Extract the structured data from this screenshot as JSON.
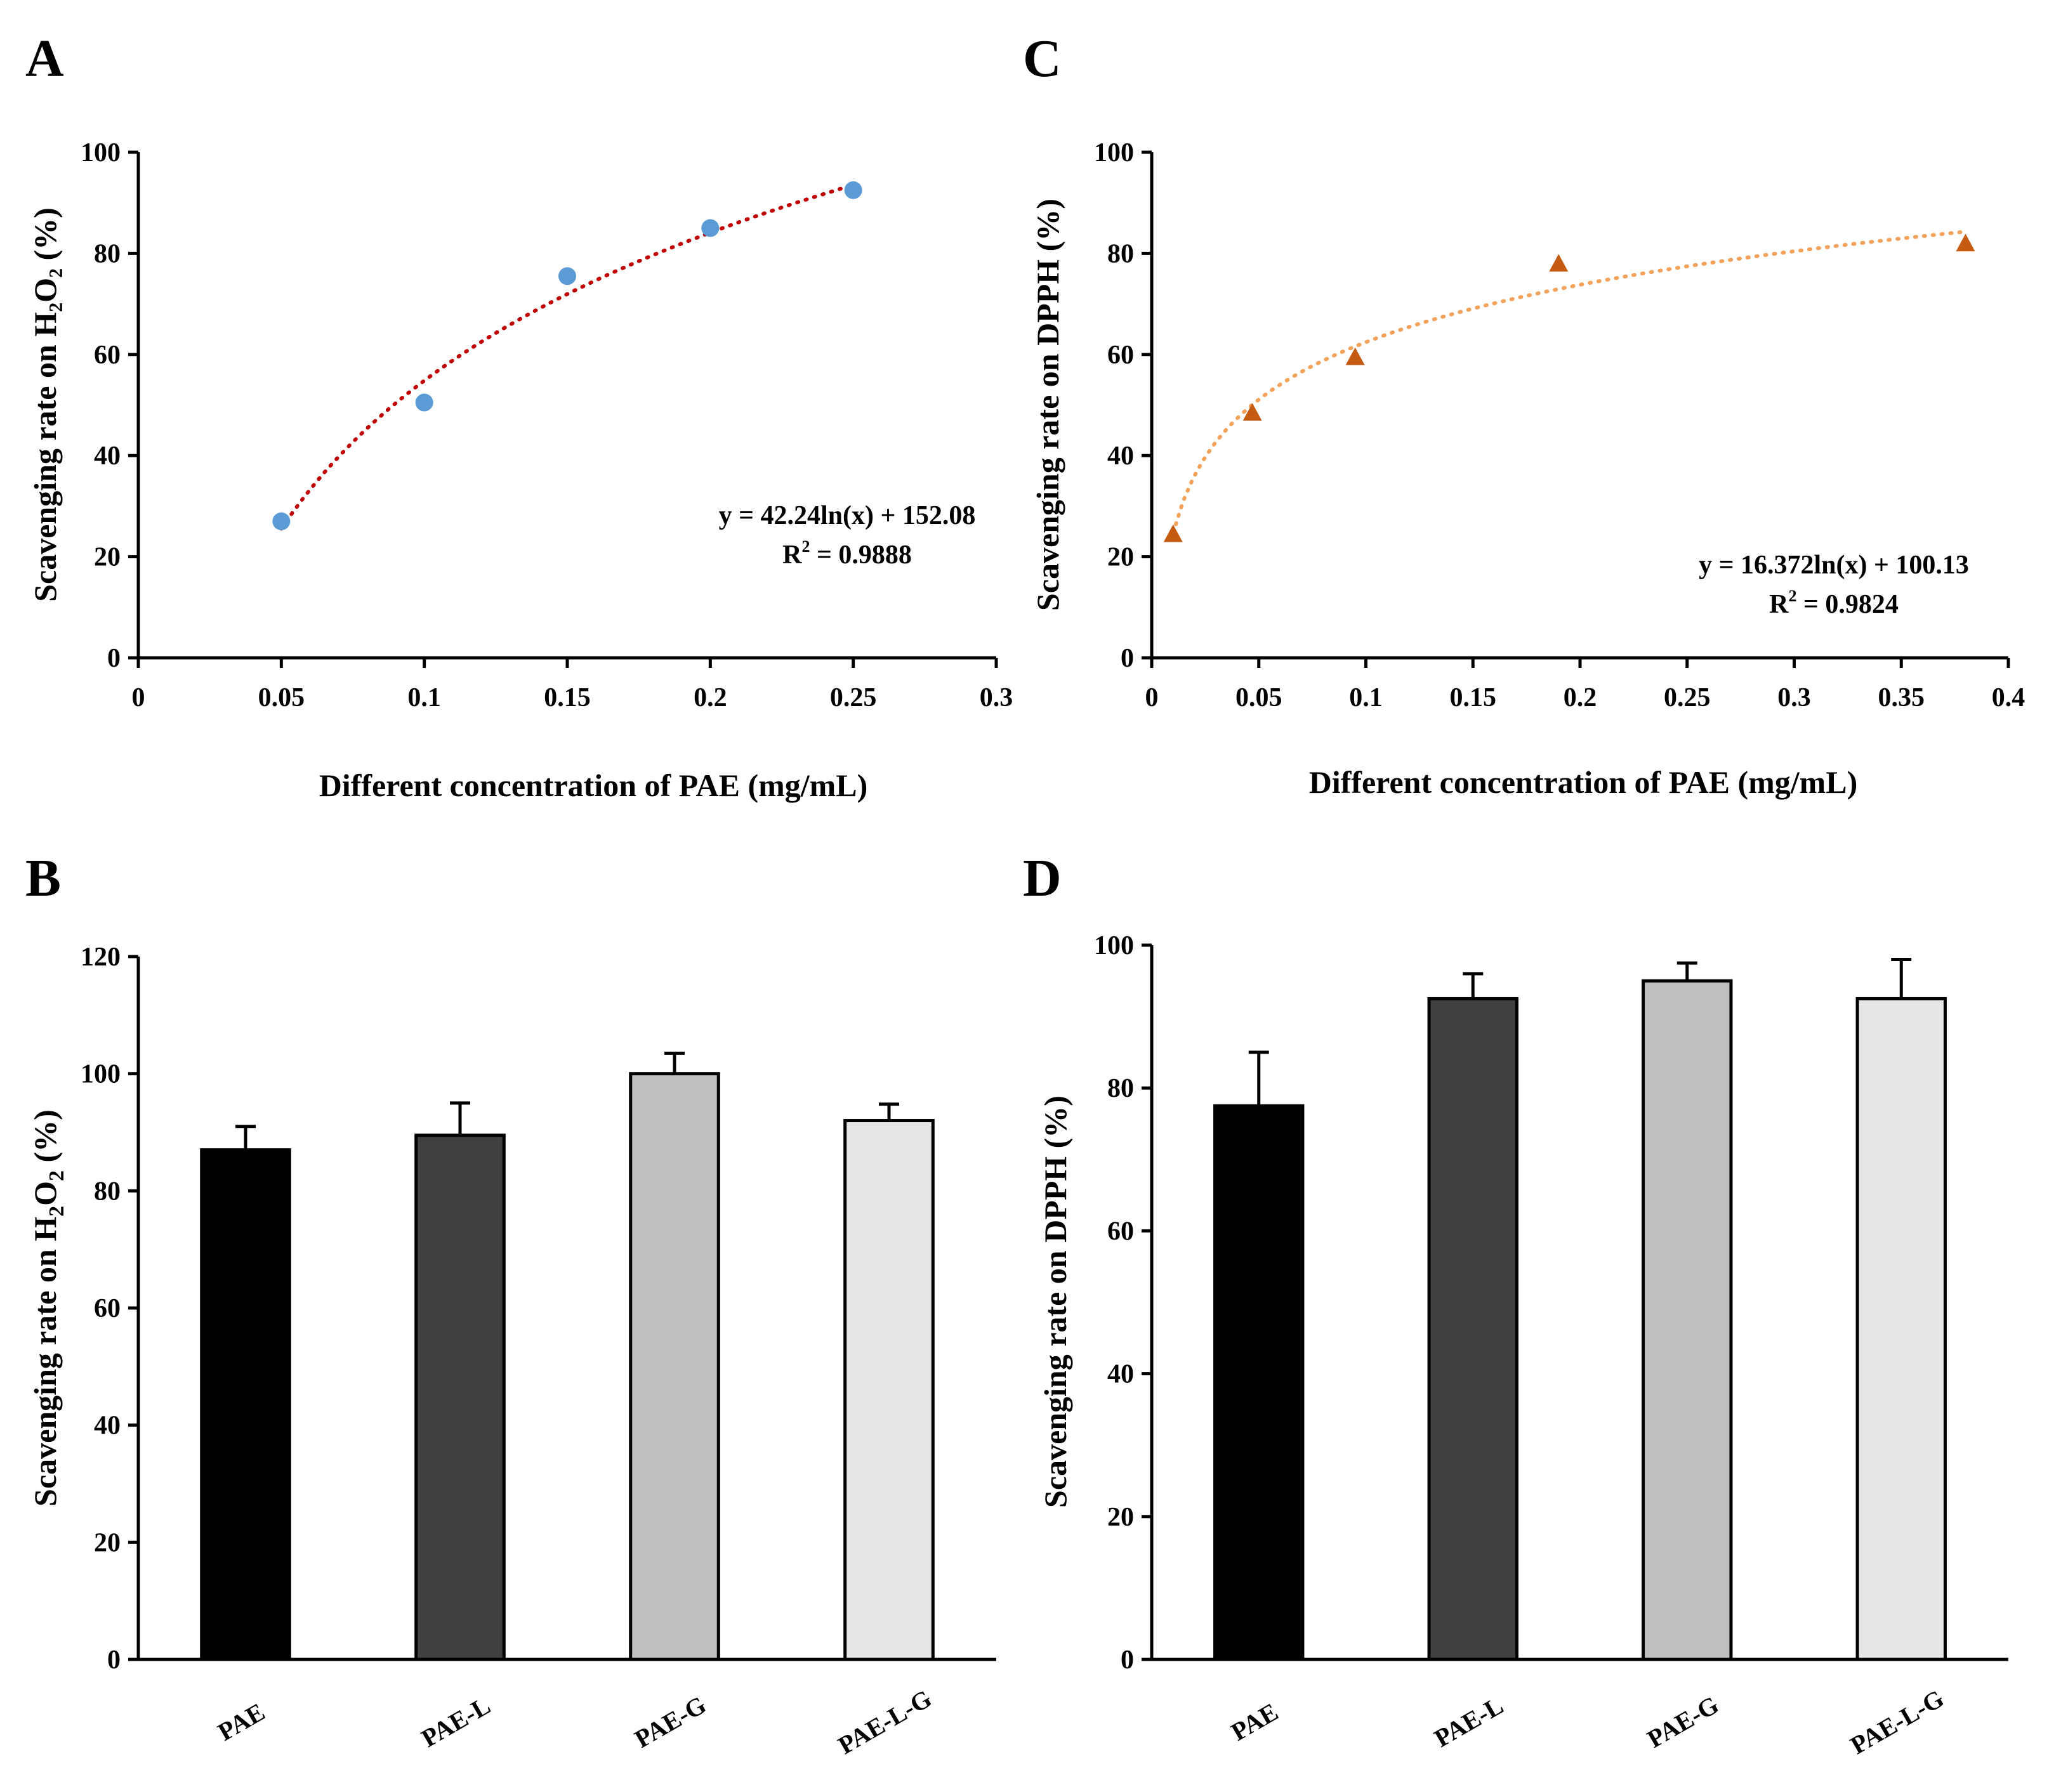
{
  "colors": {
    "scatter_a_points": "#5b9bd5",
    "scatter_a_trend": "#c00000",
    "scatter_c_points": "#c55a11",
    "scatter_c_trend": "#f4a15a",
    "bar_pae": "#000000",
    "bar_pae_l": "#404040",
    "bar_pae_g": "#bfbfbf",
    "bar_pae_l_g": "#e6e6e6"
  },
  "chart_data": [
    {
      "panel": "A",
      "type": "scatter",
      "marker": "circle",
      "x": [
        0.05,
        0.1,
        0.15,
        0.2,
        0.25
      ],
      "y": [
        27,
        50.5,
        75.5,
        85,
        92.5
      ],
      "xlabel": "Different concentration of PAE (mg/mL)",
      "ylabel": "Scavenging rate on H₂O₂ (%)",
      "xlim": [
        0,
        0.3
      ],
      "ylim": [
        0,
        100
      ],
      "xticks": [
        "0",
        "0.05",
        "0.1",
        "0.15",
        "0.2",
        "0.25",
        "0.3"
      ],
      "yticks": [
        "0",
        "20",
        "40",
        "60",
        "80",
        "100"
      ],
      "trendline": {
        "type": "log",
        "a": 42.24,
        "b": 152.08,
        "x_range": [
          0.05,
          0.25
        ]
      },
      "annotation": {
        "equation": "y = 42.24ln(x) + 152.08",
        "r2_label": "R",
        "r2_sup": "2",
        "r2_value": " = 0.9888"
      }
    },
    {
      "panel": "B",
      "type": "bar",
      "categories": [
        "PAE",
        "PAE-L",
        "PAE-G",
        "PAE-L-G"
      ],
      "values": [
        87,
        89.5,
        100,
        92
      ],
      "errors": [
        4,
        5.5,
        3.5,
        2.8
      ],
      "ylabel_main": "Scavenging rate on H",
      "ylabel_sub1": "2",
      "ylabel_mid": "O",
      "ylabel_sub2": "2",
      "ylabel_end": " (%)",
      "ylim": [
        0,
        120
      ],
      "yticks": [
        "0",
        "20",
        "40",
        "60",
        "80",
        "100",
        "120"
      ]
    },
    {
      "panel": "C",
      "type": "scatter",
      "marker": "triangle",
      "x": [
        0.01,
        0.047,
        0.095,
        0.19,
        0.38
      ],
      "y": [
        24.5,
        48.5,
        59.5,
        78,
        82
      ],
      "xlabel": "Different concentration of PAE (mg/mL)",
      "ylabel": "Scavenging rate on DPPH (%)",
      "xlim": [
        0,
        0.4
      ],
      "ylim": [
        0,
        100
      ],
      "xticks": [
        "0",
        "0.05",
        "0.1",
        "0.15",
        "0.2",
        "0.25",
        "0.3",
        "0.35",
        "0.4"
      ],
      "yticks": [
        "0",
        "20",
        "40",
        "60",
        "80",
        "100"
      ],
      "trendline": {
        "type": "log",
        "a": 16.372,
        "b": 100.13,
        "x_range": [
          0.01,
          0.38
        ]
      },
      "annotation": {
        "equation": "y = 16.372ln(x) + 100.13",
        "r2_label": "R",
        "r2_sup": "2",
        "r2_value": " = 0.9824"
      }
    },
    {
      "panel": "D",
      "type": "bar",
      "categories": [
        "PAE",
        "PAE-L",
        "PAE-G",
        "PAE-L-G"
      ],
      "values": [
        77.5,
        92.5,
        95,
        92.5
      ],
      "errors": [
        7.5,
        3.5,
        2.5,
        5.5
      ],
      "ylabel": "Scavenging rate on DPPH (%)",
      "ylim": [
        0,
        100
      ],
      "yticks": [
        "0",
        "20",
        "40",
        "60",
        "80",
        "100"
      ]
    }
  ]
}
